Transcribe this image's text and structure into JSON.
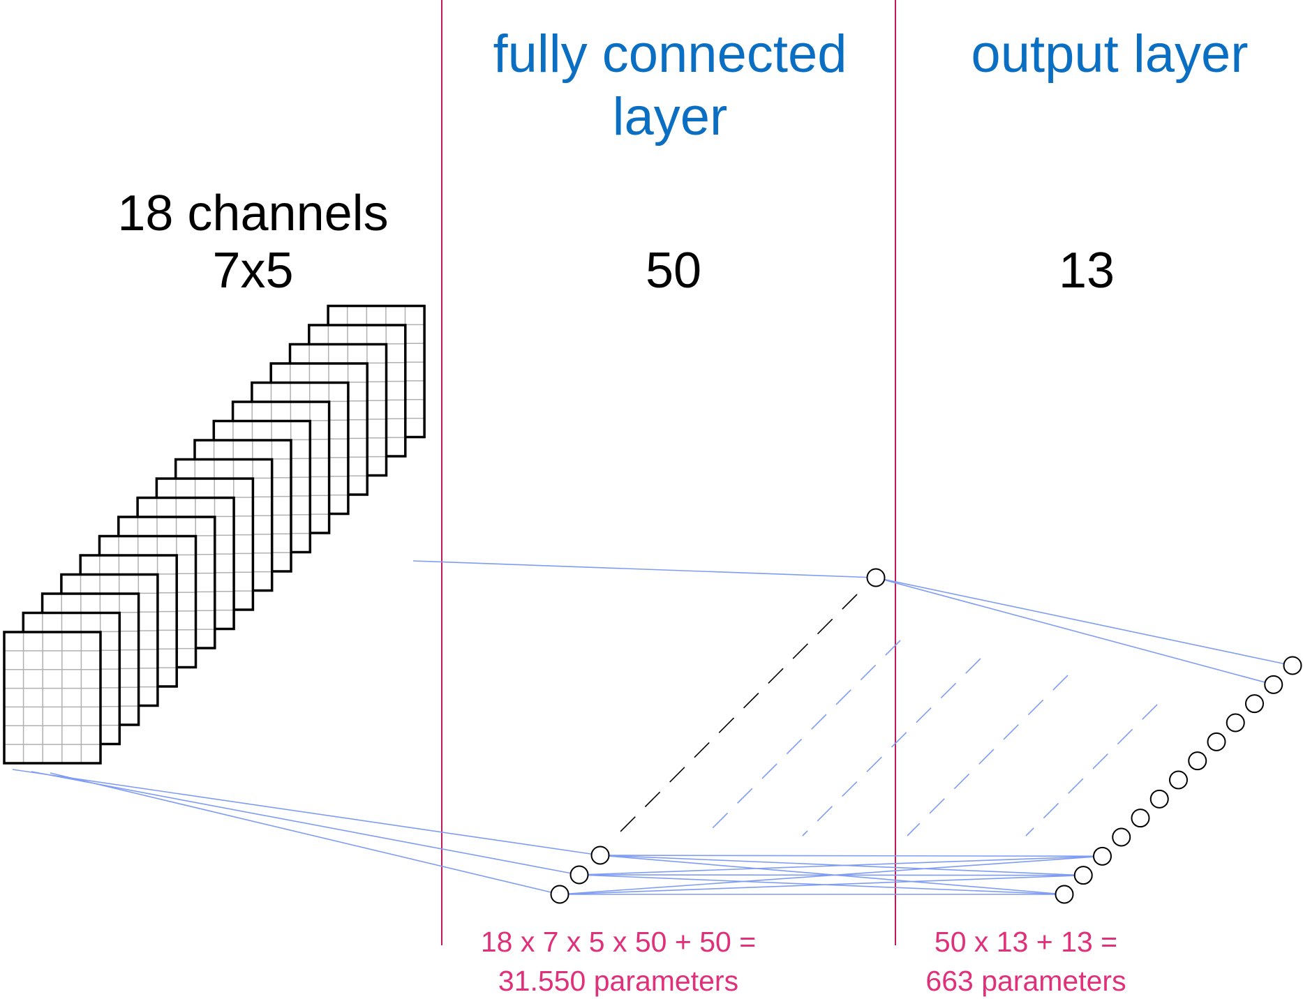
{
  "headers": {
    "fully_connected_line1": "fully connected",
    "fully_connected_line2": "layer",
    "output": "output layer"
  },
  "input": {
    "channels_label": "18 channels",
    "size_label": "7x5",
    "channel_count": 18,
    "grid_cols": 5,
    "grid_rows": 7
  },
  "fully_connected": {
    "units_label": "50"
  },
  "output": {
    "units_label": "13",
    "neuron_count": 13
  },
  "formulas": {
    "fc_line1": "18 x 7 x 5 x 50 + 50 =",
    "fc_line2": "31.550 parameters",
    "out_line1": "50 x 13  + 13 =",
    "out_line2": "663 parameters"
  },
  "colors": {
    "header_text": "#0a6fc2",
    "divider": "#c2185b",
    "connection": "#7f9cf5",
    "formula_text": "#e0307a",
    "grid_line": "#b0b0b0",
    "frame": "#000000"
  }
}
